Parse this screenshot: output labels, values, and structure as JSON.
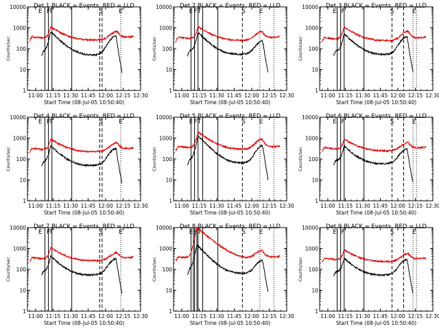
{
  "colors": {
    "events": "#000000",
    "lld": "#e00000",
    "axes": "#000000",
    "background": "#ffffff"
  },
  "chart_data": [
    {
      "type": "line",
      "title": "Det 1   BLACK = Events, RED = LLD",
      "xlabel": "Start Time (08-Jul-05 10:50:40)",
      "ylabel": "Counts/sec",
      "log_y": true,
      "ylim": [
        1,
        10000
      ],
      "x_ticks": [
        "11:00",
        "11:15",
        "11:30",
        "11:45",
        "12:00",
        "12:15",
        "12:30"
      ],
      "y_ticks": [
        "1",
        "10",
        "100",
        "1000",
        "10000"
      ],
      "markers": {
        "solid": [
          "11:08",
          "11:11",
          "11:14",
          "11:31"
        ],
        "dashed": [
          "11:55",
          "11:57"
        ],
        "dotted": [
          "12:13"
        ],
        "letters": [
          {
            "t": "11:04",
            "text": "E"
          },
          {
            "t": "11:11",
            "text": "F"
          },
          {
            "t": "11:13",
            "text": "T"
          },
          {
            "t": "11:56",
            "text": "S"
          },
          {
            "t": "12:13",
            "text": "E"
          }
        ]
      },
      "series": [
        {
          "name": "Events",
          "color": "black",
          "start": "11:05",
          "end": "12:14",
          "base": 45,
          "flare1": [
            "11:13",
            650
          ],
          "flare2": [
            "12:09",
            380
          ]
        },
        {
          "name": "LLD",
          "color": "red",
          "start": "10:55",
          "end": "12:24",
          "base": 240,
          "flare1": [
            "11:13",
            1050
          ],
          "flare2": [
            "12:10",
            600
          ]
        }
      ]
    },
    {
      "type": "line",
      "title": "Det 2   BLACK = Events, RED = LLD",
      "xlabel": "Start Time (08-Jul-05 10:50:40)",
      "ylabel": "Counts/sec",
      "log_y": true,
      "ylim": [
        1,
        10000
      ],
      "x_ticks": [
        "11:00",
        "11:15",
        "11:30",
        "11:45",
        "12:00",
        "12:15",
        "12:30"
      ],
      "y_ticks": [
        "1",
        "10",
        "100",
        "1000",
        "10000"
      ],
      "markers": {
        "solid": [
          "11:08",
          "11:11",
          "11:14",
          "11:18",
          "11:31"
        ],
        "dashed": [
          "11:52"
        ],
        "dotted": [
          "12:07",
          "12:19"
        ],
        "letters": [
          {
            "t": "11:08",
            "text": "E"
          },
          {
            "t": "11:12",
            "text": "F"
          },
          {
            "t": "11:15",
            "text": "T"
          },
          {
            "t": "11:53",
            "text": "S"
          },
          {
            "t": "12:08",
            "text": "E"
          }
        ]
      },
      "series": [
        {
          "name": "Events",
          "color": "black",
          "start": "11:05",
          "end": "12:14",
          "base": 48,
          "flare1": [
            "11:14",
            600
          ],
          "flare2": [
            "12:10",
            230
          ]
        },
        {
          "name": "LLD",
          "color": "red",
          "start": "10:55",
          "end": "12:24",
          "base": 230,
          "flare1": [
            "11:14",
            1100
          ],
          "flare2": [
            "12:09",
            600
          ]
        }
      ]
    },
    {
      "type": "line",
      "title": "Det 3   BLACK = Events, RED = LLD",
      "xlabel": "Start Time (08-Jul-05 10:50:40)",
      "ylabel": "Counts/sec",
      "log_y": true,
      "ylim": [
        1,
        10000
      ],
      "x_ticks": [
        "11:00",
        "11:15",
        "11:30",
        "11:45",
        "12:00",
        "12:15",
        "12:30"
      ],
      "y_ticks": [
        "1",
        "10",
        "100",
        "1000",
        "10000"
      ],
      "markers": {
        "solid": [
          "11:08",
          "11:11",
          "11:14",
          "11:31"
        ],
        "dashed": [
          "11:55",
          "12:05"
        ],
        "dotted": [
          "12:13",
          "12:16"
        ],
        "letters": [
          {
            "t": "11:06",
            "text": "E"
          },
          {
            "t": "11:13",
            "text": "F"
          },
          {
            "t": "11:55",
            "text": "S"
          },
          {
            "t": "12:14",
            "text": "E"
          }
        ]
      },
      "series": [
        {
          "name": "Events",
          "color": "black",
          "start": "11:05",
          "end": "12:13",
          "base": 48,
          "flare1": [
            "11:14",
            500
          ],
          "flare2": [
            "12:08",
            350
          ]
        },
        {
          "name": "LLD",
          "color": "red",
          "start": "10:55",
          "end": "12:24",
          "base": 220,
          "flare1": [
            "11:14",
            1050
          ],
          "flare2": [
            "12:09",
            620
          ]
        }
      ]
    },
    {
      "type": "line",
      "title": "Det 4   BLACK = Events, RED = LLD",
      "xlabel": "Start Time (08-Jul-05 10:50:40)",
      "ylabel": "Counts/sec",
      "log_y": true,
      "ylim": [
        1,
        10000
      ],
      "x_ticks": [
        "11:00",
        "11:15",
        "11:30",
        "11:45",
        "12:00",
        "12:15",
        "12:30"
      ],
      "y_ticks": [
        "1",
        "10",
        "100",
        "1000",
        "10000"
      ],
      "markers": {
        "solid": [
          "11:08",
          "11:11",
          "11:14",
          "11:31"
        ],
        "dashed": [
          "11:55",
          "11:57"
        ],
        "dotted": [
          "12:13"
        ],
        "letters": [
          {
            "t": "11:04",
            "text": "E"
          },
          {
            "t": "11:11",
            "text": "F"
          },
          {
            "t": "11:13",
            "text": "T"
          },
          {
            "t": "11:56",
            "text": "S"
          },
          {
            "t": "12:13",
            "text": "E"
          }
        ]
      },
      "series": [
        {
          "name": "Events",
          "color": "black",
          "start": "11:05",
          "end": "12:14",
          "base": 45,
          "flare1": [
            "11:13",
            420
          ],
          "flare2": [
            "12:09",
            300
          ]
        },
        {
          "name": "LLD",
          "color": "red",
          "start": "10:55",
          "end": "12:24",
          "base": 210,
          "flare1": [
            "11:13",
            850
          ],
          "flare2": [
            "12:10",
            550
          ]
        }
      ]
    },
    {
      "type": "line",
      "title": "Det 5   BLACK = Events, RED = LLD",
      "xlabel": "Start Time (08-Jul-05 10:50:40)",
      "ylabel": "Counts/sec",
      "log_y": true,
      "ylim": [
        1,
        10000
      ],
      "x_ticks": [
        "11:00",
        "11:15",
        "11:30",
        "11:45",
        "12:00",
        "12:15",
        "12:30"
      ],
      "y_ticks": [
        "1",
        "10",
        "100",
        "1000",
        "10000"
      ],
      "markers": {
        "solid": [
          "11:08",
          "11:11",
          "11:14",
          "11:18",
          "11:31"
        ],
        "dashed": [
          "11:52"
        ],
        "dotted": [
          "12:07",
          "12:19"
        ],
        "letters": [
          {
            "t": "11:08",
            "text": "E"
          },
          {
            "t": "11:12",
            "text": "F"
          },
          {
            "t": "11:15",
            "text": "T"
          },
          {
            "t": "11:53",
            "text": "S"
          },
          {
            "t": "12:08",
            "text": "E"
          }
        ]
      },
      "series": [
        {
          "name": "Events",
          "color": "black",
          "start": "11:05",
          "end": "12:14",
          "base": 55,
          "flare1": [
            "11:14",
            1300
          ],
          "flare2": [
            "12:10",
            430
          ]
        },
        {
          "name": "LLD",
          "color": "red",
          "start": "10:55",
          "end": "12:24",
          "base": 260,
          "flare1": [
            "11:14",
            1900
          ],
          "flare2": [
            "12:09",
            800
          ]
        }
      ]
    },
    {
      "type": "line",
      "title": "Det 6   BLACK = Events, RED = LLD",
      "xlabel": "Start Time (08-Jul-05 10:50:40)",
      "ylabel": "Counts/sec",
      "log_y": true,
      "ylim": [
        1,
        10000
      ],
      "x_ticks": [
        "11:00",
        "11:15",
        "11:30",
        "11:45",
        "12:00",
        "12:15",
        "12:30"
      ],
      "y_ticks": [
        "1",
        "10",
        "100",
        "1000",
        "10000"
      ],
      "markers": {
        "solid": [
          "11:08",
          "11:11",
          "11:14",
          "11:31"
        ],
        "dashed": [
          "11:55",
          "12:05"
        ],
        "dotted": [
          "12:13",
          "12:16"
        ],
        "letters": [
          {
            "t": "11:06",
            "text": "E"
          },
          {
            "t": "11:13",
            "text": "F"
          },
          {
            "t": "11:55",
            "text": "S"
          },
          {
            "t": "12:14",
            "text": "E"
          }
        ]
      },
      "series": [
        {
          "name": "Events",
          "color": "black",
          "start": "11:05",
          "end": "12:13",
          "base": 55,
          "flare1": [
            "11:14",
            400
          ],
          "flare2": [
            "12:08",
            280
          ]
        },
        {
          "name": "LLD",
          "color": "red",
          "start": "10:55",
          "end": "12:24",
          "base": 230,
          "flare1": [
            "11:14",
            850
          ],
          "flare2": [
            "12:09",
            560
          ]
        }
      ]
    },
    {
      "type": "line",
      "title": "Det 7   BLACK = Events, RED = LLD",
      "xlabel": "Start Time (08-Jul-05 10:50:40)",
      "ylabel": "Counts/sec",
      "log_y": true,
      "ylim": [
        1,
        10000
      ],
      "x_ticks": [
        "11:00",
        "11:15",
        "11:30",
        "11:45",
        "12:00",
        "12:15",
        "12:30"
      ],
      "y_ticks": [
        "1",
        "10",
        "100",
        "1000",
        "10000"
      ],
      "markers": {
        "solid": [
          "11:08",
          "11:11",
          "11:14",
          "11:31"
        ],
        "dashed": [
          "11:55",
          "11:57"
        ],
        "dotted": [
          "12:13"
        ],
        "letters": [
          {
            "t": "11:04",
            "text": "E"
          },
          {
            "t": "11:11",
            "text": "F"
          },
          {
            "t": "11:13",
            "text": "T"
          },
          {
            "t": "11:56",
            "text": "S"
          },
          {
            "t": "12:13",
            "text": "E"
          }
        ]
      },
      "series": [
        {
          "name": "Events",
          "color": "black",
          "start": "11:05",
          "end": "12:14",
          "base": 50,
          "flare1": [
            "11:13",
            420
          ],
          "flare2": [
            "12:09",
            300
          ]
        },
        {
          "name": "LLD",
          "color": "red",
          "start": "10:55",
          "end": "12:24",
          "base": 240,
          "flare1": [
            "11:13",
            1050
          ],
          "flare2": [
            "12:10",
            560
          ]
        }
      ]
    },
    {
      "type": "line",
      "title": "Det 8   BLACK = Events, RED = LLD",
      "xlabel": "Start Time (08-Jul-05 10:50:40)",
      "ylabel": "Counts/sec",
      "log_y": true,
      "ylim": [
        1,
        10000
      ],
      "x_ticks": [
        "11:00",
        "11:15",
        "11:30",
        "11:45",
        "12:00",
        "12:15",
        "12:30"
      ],
      "y_ticks": [
        "1",
        "10",
        "100",
        "1000",
        "10000"
      ],
      "markers": {
        "solid": [
          "11:08",
          "11:10",
          "11:11",
          "11:13",
          "11:14",
          "11:18",
          "11:31"
        ],
        "dashed": [
          "11:52"
        ],
        "dotted": [
          "12:07",
          "12:19"
        ],
        "letters": [
          {
            "t": "11:08",
            "text": "E"
          },
          {
            "t": "11:12",
            "text": "F"
          },
          {
            "t": "11:15",
            "text": "T"
          },
          {
            "t": "11:53",
            "text": "S"
          },
          {
            "t": "12:08",
            "text": "E"
          }
        ]
      },
      "series": [
        {
          "name": "Events",
          "color": "black",
          "start": "11:05",
          "end": "12:14",
          "base": 55,
          "flare1": [
            "11:13",
            1500
          ],
          "flare2": [
            "12:10",
            260
          ]
        },
        {
          "name": "LLD",
          "color": "red",
          "start": "10:55",
          "end": "12:24",
          "base": 260,
          "flare1": [
            "11:13",
            10000
          ],
          "flare2": [
            "12:09",
            700
          ]
        }
      ]
    },
    {
      "type": "line",
      "title": "Det 9   BLACK = Events, RED = LLD",
      "xlabel": "Start Time (08-Jul-05 10:50:40)",
      "ylabel": "Counts/sec",
      "log_y": true,
      "ylim": [
        1,
        10000
      ],
      "x_ticks": [
        "11:00",
        "11:15",
        "11:30",
        "11:45",
        "12:00",
        "12:15",
        "12:30"
      ],
      "y_ticks": [
        "1",
        "10",
        "100",
        "1000",
        "10000"
      ],
      "markers": {
        "solid": [
          "11:08",
          "11:11",
          "11:14",
          "11:31"
        ],
        "dashed": [
          "11:55",
          "12:05"
        ],
        "dotted": [
          "12:13",
          "12:16"
        ],
        "letters": [
          {
            "t": "11:06",
            "text": "E"
          },
          {
            "t": "11:13",
            "text": "F"
          },
          {
            "t": "11:55",
            "text": "S"
          },
          {
            "t": "12:14",
            "text": "E"
          }
        ]
      },
      "series": [
        {
          "name": "Events",
          "color": "black",
          "start": "11:05",
          "end": "12:13",
          "base": 50,
          "flare1": [
            "11:14",
            330
          ],
          "flare2": [
            "12:08",
            280
          ]
        },
        {
          "name": "LLD",
          "color": "red",
          "start": "10:55",
          "end": "12:24",
          "base": 220,
          "flare1": [
            "11:14",
            820
          ],
          "flare2": [
            "12:09",
            520
          ]
        }
      ]
    }
  ]
}
